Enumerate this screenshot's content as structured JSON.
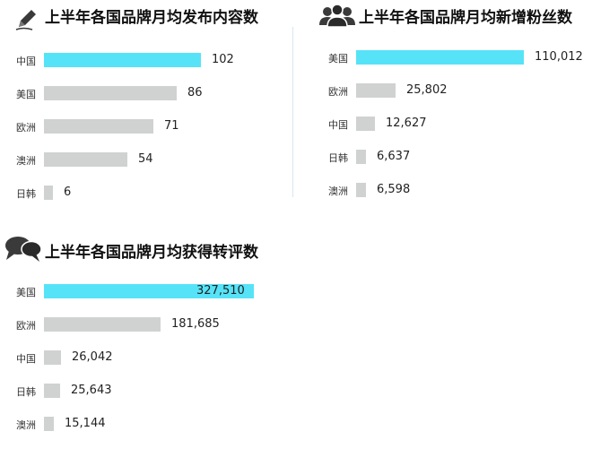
{
  "colors": {
    "highlight": "#56e3f7",
    "bar": "#d0d2d2",
    "divider": "#d9e6ee"
  },
  "chart_data": [
    {
      "type": "bar",
      "title": "上半年各国品牌月均发布内容数",
      "icon": "pencil-icon",
      "categories": [
        "中国",
        "美国",
        "欧洲",
        "澳洲",
        "日韩"
      ],
      "values": [
        102,
        86,
        71,
        54,
        6
      ],
      "value_labels": [
        "102",
        "86",
        "71",
        "54",
        "6"
      ],
      "highlight_index": 0,
      "orientation": "horizontal"
    },
    {
      "type": "bar",
      "title": "上半年各国品牌月均新增粉丝数",
      "icon": "users-icon",
      "categories": [
        "美国",
        "欧洲",
        "中国",
        "日韩",
        "澳洲"
      ],
      "values": [
        110012,
        25802,
        12627,
        6637,
        6598
      ],
      "value_labels": [
        "110,012",
        "25,802",
        "12,627",
        "6,637",
        "6,598"
      ],
      "highlight_index": 0,
      "orientation": "horizontal"
    },
    {
      "type": "bar",
      "title": "上半年各国品牌月均获得转评数",
      "icon": "chat-bubbles-icon",
      "categories": [
        "美国",
        "欧洲",
        "中国",
        "日韩",
        "澳洲"
      ],
      "values": [
        327510,
        181685,
        26042,
        25643,
        15144
      ],
      "value_labels": [
        "327,510",
        "181,685",
        "26,042",
        "25,643",
        "15,144"
      ],
      "highlight_index": 0,
      "orientation": "horizontal"
    }
  ]
}
